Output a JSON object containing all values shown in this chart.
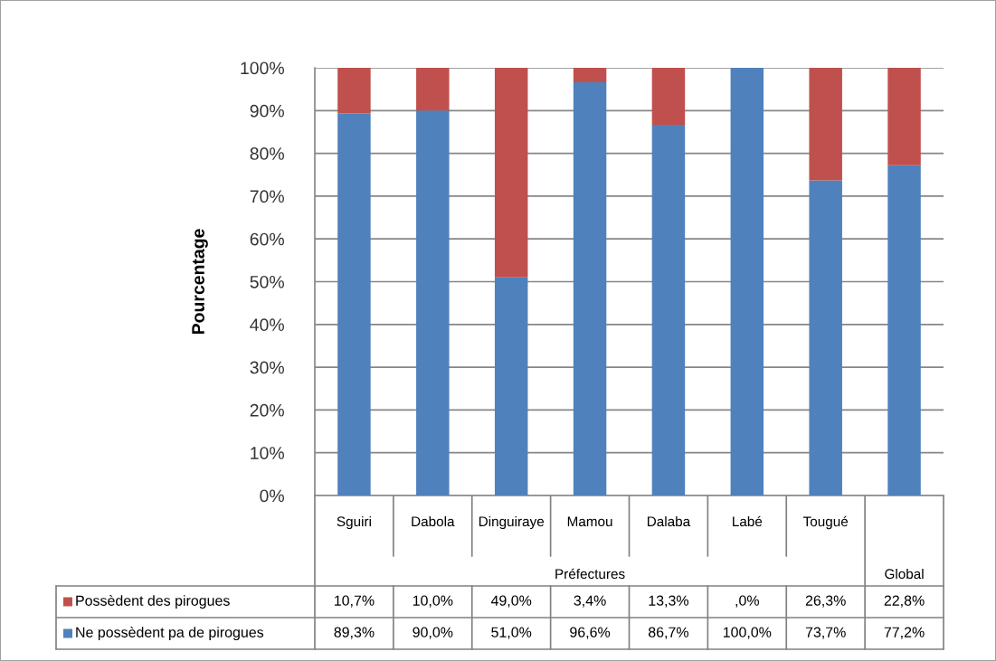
{
  "chart_data": {
    "type": "bar",
    "stacked": true,
    "ylabel": "Pourcentage",
    "categories": [
      "Sguiri",
      "Dabola",
      "Dinguiraye",
      "Mamou",
      "Dalaba",
      "Labé",
      "Tougué",
      null
    ],
    "series": [
      {
        "name": "Ne possèdent pa de pirogues",
        "color": "#4f81bd",
        "values": [
          89.3,
          90.0,
          51.0,
          96.6,
          86.7,
          100.0,
          73.7,
          77.2
        ],
        "value_labels": [
          "89,3%",
          "90,0%",
          "51,0%",
          "96,6%",
          "86,7%",
          "100,0%",
          "73,7%",
          "77,2%"
        ]
      },
      {
        "name": "Possèdent des pirogues",
        "color": "#c0504d",
        "values": [
          10.7,
          10.0,
          49.0,
          3.4,
          13.3,
          0.0,
          26.3,
          22.8
        ],
        "value_labels": [
          "10,7%",
          "10,0%",
          "49,0%",
          "3,4%",
          "13,3%",
          ",0%",
          "26,3%",
          "22,8%"
        ]
      }
    ],
    "ylim": [
      0,
      100
    ],
    "yticks": [
      {
        "value": 0,
        "label": "0%"
      },
      {
        "value": 10,
        "label": "10%"
      },
      {
        "value": 20,
        "label": "20%"
      },
      {
        "value": 30,
        "label": "30%"
      },
      {
        "value": 40,
        "label": "40%"
      },
      {
        "value": 50,
        "label": "50%"
      },
      {
        "value": 60,
        "label": "60%"
      },
      {
        "value": 70,
        "label": "70%"
      },
      {
        "value": 80,
        "label": "80%"
      },
      {
        "value": 90,
        "label": "90%"
      },
      {
        "value": 100,
        "label": "100%"
      }
    ],
    "grid": "y",
    "legend": "bottom",
    "annotations": [
      "Préfectures",
      "Global"
    ]
  }
}
